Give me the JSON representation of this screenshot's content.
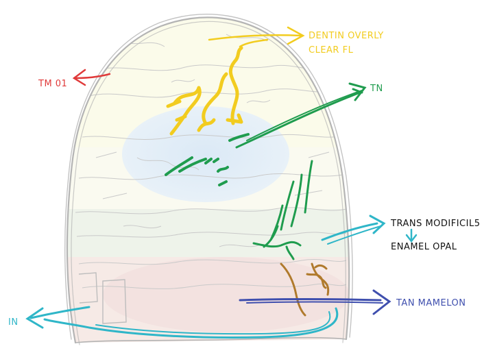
{
  "colors": {
    "outline": "#b4b4b4",
    "yellow": "#f2cc1f",
    "green": "#1f9c4e",
    "red": "#e03a3a",
    "cyan": "#2fb6c8",
    "blue": "#3f4fae",
    "brown": "#b07a2c",
    "black": "#111111"
  },
  "labels": {
    "dentin_line1": "DENTIN OVERLY",
    "dentin_line2": "CLEAR FL",
    "tm01": "TM 01",
    "tn": "TN",
    "trans": "TRANS MODIFICIL5",
    "enamel": "ENAMEL OPAL",
    "tan": "TAN MAMELON",
    "in": "IN"
  }
}
